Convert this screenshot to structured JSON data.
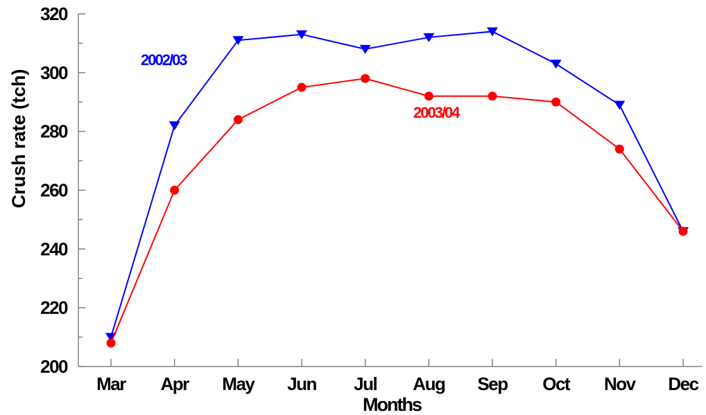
{
  "chart_data": {
    "type": "line",
    "title": "",
    "xlabel": "Months",
    "ylabel": "Crush rate (tch)",
    "categories": [
      "Mar",
      "Apr",
      "May",
      "Jun",
      "Jul",
      "Aug",
      "Sep",
      "Oct",
      "Nov",
      "Dec"
    ],
    "ylim": [
      200,
      320
    ],
    "yticks": [
      200,
      220,
      240,
      260,
      280,
      300,
      320
    ],
    "grid": false,
    "series": [
      {
        "name": "2002/03",
        "color": "#0000ff",
        "marker": "triangle-down",
        "values": [
          210,
          282,
          311,
          313,
          308,
          312,
          314,
          303,
          289,
          246
        ]
      },
      {
        "name": "2003/04",
        "color": "#ff0000",
        "marker": "circle",
        "values": [
          208,
          260,
          284,
          295,
          298,
          292,
          292,
          290,
          274,
          246
        ]
      }
    ]
  }
}
